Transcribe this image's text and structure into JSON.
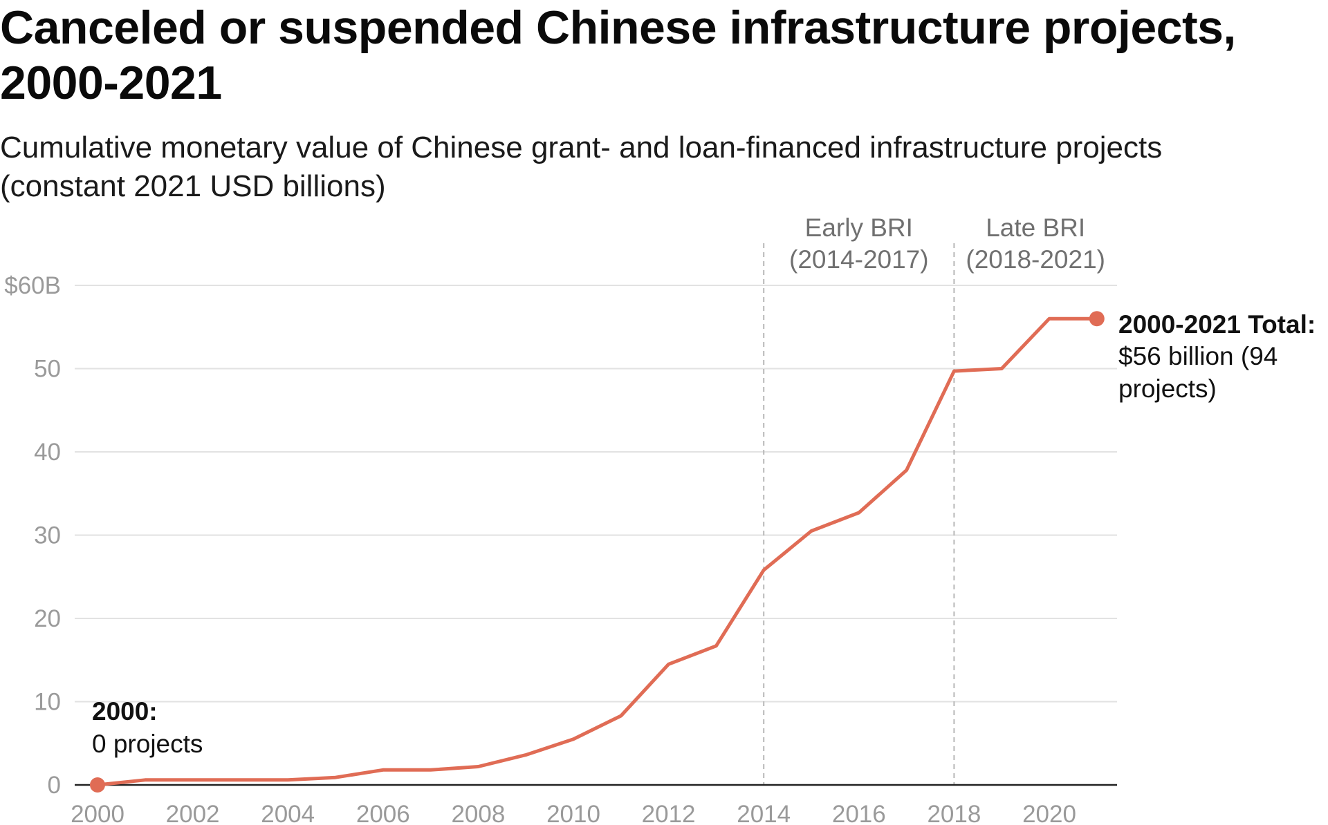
{
  "title": "Canceled or suspended Chinese infrastructure projects, 2000-2021",
  "subtitle": "Cumulative monetary value of Chinese grant- and loan-financed infrastructure projects (constant 2021 USD billions)",
  "chart_data": {
    "type": "line",
    "title": "Canceled or suspended Chinese infrastructure projects, 2000-2021",
    "subtitle": "Cumulative monetary value of Chinese grant- and loan-financed infrastructure projects (constant 2021 USD billions)",
    "xlabel": "",
    "ylabel": "",
    "x": [
      2000,
      2001,
      2002,
      2003,
      2004,
      2005,
      2006,
      2007,
      2008,
      2009,
      2010,
      2011,
      2012,
      2013,
      2014,
      2015,
      2016,
      2017,
      2018,
      2019,
      2020,
      2021
    ],
    "series": [
      {
        "values": [
          0,
          0.6,
          0.6,
          0.6,
          0.6,
          0.9,
          1.8,
          1.8,
          2.2,
          3.6,
          5.5,
          8.3,
          14.5,
          16.7,
          25.8,
          30.5,
          32.7,
          37.8,
          49.7,
          50.0,
          56.0,
          56.0
        ],
        "color": "#e06c55"
      }
    ],
    "ylim": [
      0,
      60
    ],
    "xlim": [
      2000,
      2022
    ],
    "y_ticks": [
      {
        "value": 0,
        "label": "0"
      },
      {
        "value": 10,
        "label": "10"
      },
      {
        "value": 20,
        "label": "20"
      },
      {
        "value": 30,
        "label": "30"
      },
      {
        "value": 40,
        "label": "40"
      },
      {
        "value": 50,
        "label": "50"
      },
      {
        "value": 60,
        "label": "$60B"
      }
    ],
    "x_ticks": [
      {
        "value": 2000,
        "label": "2000"
      },
      {
        "value": 2002,
        "label": "2002"
      },
      {
        "value": 2004,
        "label": "2004"
      },
      {
        "value": 2006,
        "label": "2006"
      },
      {
        "value": 2008,
        "label": "2008"
      },
      {
        "value": 2010,
        "label": "2010"
      },
      {
        "value": 2012,
        "label": "2012"
      },
      {
        "value": 2014,
        "label": "2014"
      },
      {
        "value": 2016,
        "label": "2016"
      },
      {
        "value": 2018,
        "label": "2018"
      },
      {
        "value": 2020,
        "label": "2020"
      }
    ],
    "grid": true,
    "legend": "none",
    "regions": [
      {
        "start": 2014,
        "end": 2018,
        "label_line1": "Early BRI",
        "label_line2": "(2014-2017)"
      },
      {
        "start": 2018,
        "end": 2022,
        "label_line1": "Late BRI",
        "label_line2": "(2018-2021)"
      }
    ],
    "annotations": {
      "start": {
        "x": 2000,
        "y": 0,
        "bold": "2000:",
        "text": "0 projects"
      },
      "end": {
        "x": 2021,
        "y": 56,
        "bold": "2000-2021 Total:",
        "text_line1": "$56 billion (94",
        "text_line2": "projects)"
      }
    }
  }
}
